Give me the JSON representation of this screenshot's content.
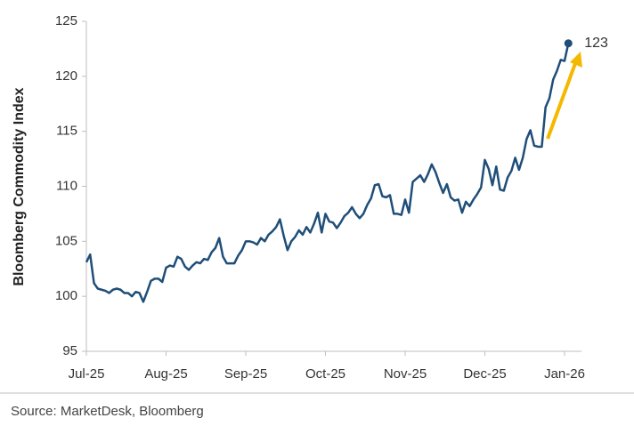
{
  "chart_data": {
    "type": "line",
    "y_axis_label": "Bloomberg Commodity Index",
    "source": "Source: MarketDesk, Bloomberg",
    "categories": [
      "Jul-25",
      null,
      null,
      null,
      null,
      null,
      null,
      null,
      null,
      null,
      null,
      null,
      null,
      null,
      null,
      null,
      null,
      null,
      null,
      null,
      null,
      "Aug-25",
      null,
      null,
      null,
      null,
      null,
      null,
      null,
      null,
      null,
      null,
      null,
      null,
      null,
      null,
      null,
      null,
      null,
      null,
      null,
      null,
      "Sep-25",
      null,
      null,
      null,
      null,
      null,
      null,
      null,
      null,
      null,
      null,
      null,
      null,
      null,
      null,
      null,
      null,
      null,
      null,
      null,
      null,
      "Oct-25",
      null,
      null,
      null,
      null,
      null,
      null,
      null,
      null,
      null,
      null,
      null,
      null,
      null,
      null,
      null,
      null,
      null,
      null,
      null,
      null,
      "Nov-25",
      null,
      null,
      null,
      null,
      null,
      null,
      null,
      null,
      null,
      null,
      null,
      null,
      null,
      null,
      null,
      null,
      null,
      null,
      null,
      null,
      "Dec-25",
      null,
      null,
      null,
      null,
      null,
      null,
      null,
      null,
      null,
      null,
      null,
      null,
      null,
      null,
      null,
      null,
      null,
      null,
      null,
      null,
      "Jan-26",
      null
    ],
    "series": [
      {
        "color": "#1f4e79",
        "values": [
          103.1,
          103.8,
          101.2,
          100.7,
          100.6,
          100.5,
          100.3,
          100.6,
          100.7,
          100.6,
          100.3,
          100.3,
          100.0,
          100.4,
          100.3,
          99.5,
          100.4,
          101.4,
          101.6,
          101.6,
          101.3,
          102.6,
          102.8,
          102.7,
          103.6,
          103.4,
          102.7,
          102.4,
          102.8,
          103.1,
          103.0,
          103.4,
          103.3,
          104.0,
          104.4,
          105.3,
          103.6,
          103.0,
          103.0,
          103.0,
          103.7,
          104.2,
          105.0,
          105.0,
          104.9,
          104.7,
          105.3,
          105.0,
          105.6,
          105.9,
          106.3,
          107.0,
          105.5,
          104.2,
          105.0,
          105.4,
          106.0,
          105.6,
          106.3,
          105.8,
          106.6,
          107.6,
          105.8,
          107.5,
          106.8,
          106.7,
          106.2,
          106.7,
          107.3,
          107.6,
          108.1,
          107.5,
          107.1,
          107.5,
          108.3,
          108.9,
          110.1,
          110.2,
          109.1,
          109.0,
          109.2,
          107.5,
          107.5,
          107.4,
          108.8,
          107.6,
          110.4,
          110.7,
          111.0,
          110.4,
          111.1,
          112.0,
          111.3,
          110.3,
          109.4,
          110.2,
          109.0,
          108.7,
          108.8,
          107.6,
          108.6,
          108.2,
          108.8,
          109.3,
          109.9,
          112.4,
          111.6,
          110.1,
          111.8,
          109.7,
          109.6,
          110.8,
          111.4,
          112.6,
          111.5,
          112.6,
          114.3,
          115.1,
          113.7,
          113.6,
          113.6,
          117.2,
          118.0,
          119.7,
          120.5,
          121.5,
          121.4,
          123.0
        ]
      }
    ],
    "ylim": [
      95,
      125
    ],
    "yticks": [
      95,
      100,
      105,
      110,
      115,
      120,
      125
    ]
  }
}
